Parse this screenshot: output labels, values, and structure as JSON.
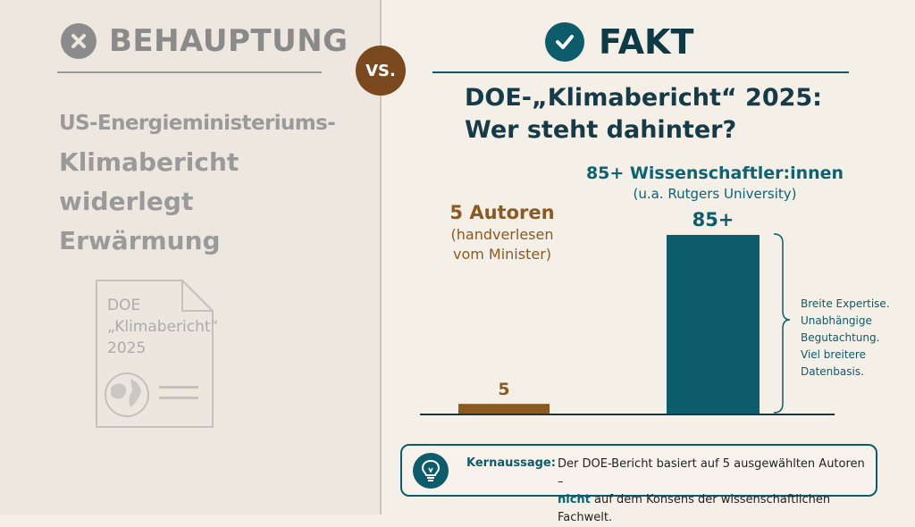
{
  "claim": {
    "title": "BEHAUPTUNG",
    "text_lines": [
      "US-Energieministeriums-",
      "Klimabericht",
      "widerlegt",
      "Erwärmung"
    ],
    "document_label": "DOE\n„Klimabericht“\n2025"
  },
  "vs_label": "VS.",
  "fact": {
    "title": "FAKT",
    "chart_title_line1": "DOE-„Klimabericht“ 2025:",
    "chart_title_line2": "Wer steht dahinter?"
  },
  "chart_data": {
    "type": "bar",
    "categories": [
      "5 Autoren",
      "85+ Wissenschaftler:innen"
    ],
    "values": [
      5,
      85
    ],
    "value_labels": [
      "5",
      "85+"
    ],
    "colors": [
      "#8b5a22",
      "#0d5c6b"
    ],
    "category_subtitles": [
      "(handverlesen vom Minister)",
      "(u.a. Rutgers University)"
    ],
    "annotation": [
      "Breite Expertise.",
      "Unabhängige",
      "Begutachtung.",
      "Viel breitere",
      "Datenbasis."
    ]
  },
  "ann": {
    "brown_big": "5 Autoren",
    "brown_sub1": "(handverlesen",
    "brown_sub2": "vom Minister)",
    "teal_big": "85+ Wissenschaftler:innen",
    "teal_sub": "(u.a. Rutgers University)"
  },
  "key": {
    "label": "Kernaussage:",
    "line1": "Der DOE-Bericht basiert auf 5 ausgewählten Autoren –",
    "line2_emph": "nicht",
    "line2_rest": " auf dem Konsens der wissenschaftlichen Fachwelt."
  }
}
